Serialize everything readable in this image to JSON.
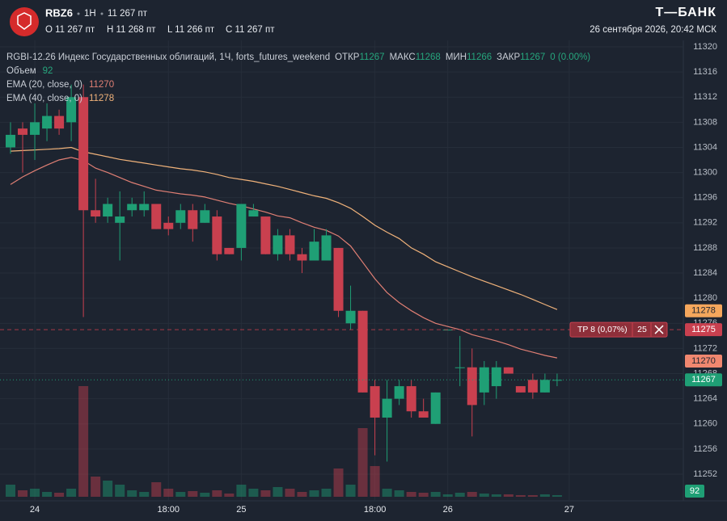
{
  "header": {
    "symbol": "RBZ6",
    "interval": "1H",
    "price": "11 267 пт",
    "ohlc": [
      "O 11 267 пт",
      "H 11 268 пт",
      "L 11 266 пт",
      "C 11 267 пт"
    ],
    "brand": "Т—БАНК",
    "datetime": "26 сентября 2026, 20:42 МСК"
  },
  "legend": {
    "instrument": "RGBI-12.26 Индекс Государственных облигаций, 1Ч, forts_futures_weekend",
    "items": [
      {
        "name": "ОТКР",
        "value": "11267"
      },
      {
        "name": "МАКС",
        "value": "11268"
      },
      {
        "name": "МИН",
        "value": "11266"
      },
      {
        "name": "ЗАКР",
        "value": "11267"
      }
    ],
    "change": "0 (0.00%)",
    "volume_name": "Объем",
    "ema": [
      {
        "name": "EMA (20, close, 0)",
        "value": "11270"
      },
      {
        "name": "EMA (40, close, 0)",
        "value": "11278"
      }
    ]
  },
  "chart_data": {
    "type": "candlestick",
    "categories": [
      null,
      null,
      "24",
      null,
      null,
      null,
      null,
      null,
      null,
      null,
      null,
      null,
      null,
      "18:00",
      null,
      null,
      null,
      null,
      null,
      "25",
      null,
      null,
      null,
      null,
      null,
      null,
      null,
      null,
      null,
      null,
      "18:00",
      null,
      null,
      null,
      null,
      null,
      "26",
      null,
      null,
      null,
      null,
      null,
      null,
      null,
      null,
      null,
      "27"
    ],
    "open": [
      11304,
      11307,
      11306,
      11307,
      11309,
      11308,
      11312,
      11294,
      11293,
      11292,
      11294,
      11294,
      11295,
      11292,
      11292,
      11294,
      11292,
      11293,
      11288,
      11288,
      11293,
      11293,
      11287,
      11290,
      11287,
      11286,
      11286,
      11288,
      11276,
      11278,
      11266,
      11261,
      11264,
      11266,
      11262,
      11260,
      11275,
      11269,
      11269,
      11265,
      11266,
      11269,
      11266,
      11267,
      11265,
      11267,
      null
    ],
    "high": [
      11308,
      11308,
      11311,
      11311,
      11310,
      11314,
      11314,
      11299,
      11296,
      11297,
      11296,
      11297,
      11295,
      11293,
      11295,
      11295,
      11295,
      11294,
      11288,
      11295,
      11295,
      11293,
      11291,
      11291,
      11288,
      11291,
      11291,
      11288,
      11282,
      11278,
      11267,
      11267,
      11267,
      11267,
      11264,
      11265,
      11275,
      11274,
      11272,
      11270,
      11270,
      11269,
      11266,
      11268,
      11268,
      11268,
      null
    ],
    "low": [
      11303,
      11300,
      11302,
      11305,
      11306,
      11305,
      11277,
      11292,
      11292,
      11286,
      11293,
      11293,
      11291,
      11290,
      11291,
      11289,
      11292,
      11286,
      11287,
      11286,
      11293,
      11287,
      11286,
      11286,
      11284,
      11286,
      11286,
      11277,
      11275,
      11265,
      11255,
      11254,
      11263,
      11261,
      11261,
      11260,
      11275,
      11266,
      11258,
      11263,
      11264,
      11268,
      11265,
      11264,
      11265,
      11266,
      null
    ],
    "close": [
      11306,
      11306,
      11308,
      11309,
      11307,
      11312,
      11294,
      11293,
      11295,
      11293,
      11295,
      11295,
      11291,
      11291,
      11294,
      11291,
      11294,
      11287,
      11287,
      11295,
      11294,
      11287,
      11290,
      11287,
      11286,
      11289,
      11290,
      11278,
      11278,
      11265,
      11261,
      11264,
      11266,
      11262,
      11261,
      11265,
      11275,
      11269,
      11263,
      11269,
      11269,
      11268,
      11265,
      11265,
      11267,
      11267,
      null
    ],
    "volume": [
      690,
      368,
      460,
      276,
      230,
      460,
      6302,
      1150,
      920,
      690,
      368,
      276,
      828,
      460,
      276,
      322,
      230,
      368,
      184,
      690,
      460,
      368,
      552,
      460,
      276,
      368,
      460,
      1610,
      690,
      3910,
      1748,
      460,
      368,
      276,
      230,
      276,
      138,
      230,
      276,
      184,
      138,
      138,
      92,
      92,
      138,
      92,
      null
    ],
    "ema": [
      {
        "name": "EMA (20, close, 0)",
        "color": "#e07f74",
        "values": [
          11298.1,
          11299.3,
          11300.3,
          11301.2,
          11302,
          11302.4,
          11301.9,
          11300.7,
          11300,
          11299.2,
          11298.4,
          11297.8,
          11297.2,
          11296.9,
          11296.6,
          11296.4,
          11296.1,
          11295.6,
          11295.1,
          11294.7,
          11294.2,
          11293.7,
          11293.1,
          11292.8,
          11292,
          11291.3,
          11290.8,
          11289.9,
          11288.3,
          11285.7,
          11283.1,
          11280.9,
          11279.3,
          11278,
          11276.9,
          11276,
          11275.5,
          11275,
          11274.2,
          11273.7,
          11273.2,
          11272.6,
          11271.9,
          11271.4,
          11270.9,
          11270.5,
          null
        ]
      },
      {
        "name": "EMA (40, close, 0)",
        "color": "#f0b27a",
        "values": [
          11303.4,
          11303.5,
          11303.6,
          11303.7,
          11303.8,
          11304,
          11303.3,
          11302.9,
          11302.5,
          11302.1,
          11301.8,
          11301.5,
          11301.2,
          11300.9,
          11300.6,
          11300.4,
          11300.1,
          11299.7,
          11299.2,
          11298.9,
          11298.6,
          11298.2,
          11297.8,
          11297.3,
          11296.8,
          11296.3,
          11295.9,
          11295.2,
          11294.3,
          11293,
          11291.6,
          11290.5,
          11289.5,
          11288,
          11287,
          11285.8,
          11285,
          11284.2,
          11283.4,
          11282.7,
          11282,
          11281.3,
          11280.6,
          11279.8,
          11279,
          11278.2,
          null
        ]
      }
    ],
    "up_color": "#1f9f75",
    "down_color": "#c9404f",
    "ylim": [
      11252,
      11320
    ],
    "yticks": [
      11320,
      11316,
      11312,
      11308,
      11304,
      11300,
      11296,
      11292,
      11288,
      11284,
      11280,
      11276,
      11272,
      11268,
      11264,
      11260,
      11256,
      11252
    ],
    "badges": [
      {
        "value": 11278,
        "color": "#f5a75c"
      },
      {
        "value": 11270,
        "color": "#f0876f"
      },
      {
        "value": 11267,
        "color": "#1f9f75"
      }
    ],
    "tp": {
      "label": "TP 8 (0,07%)",
      "qty": 25,
      "value": 11275,
      "color": "#c9404f"
    },
    "grid": true
  }
}
